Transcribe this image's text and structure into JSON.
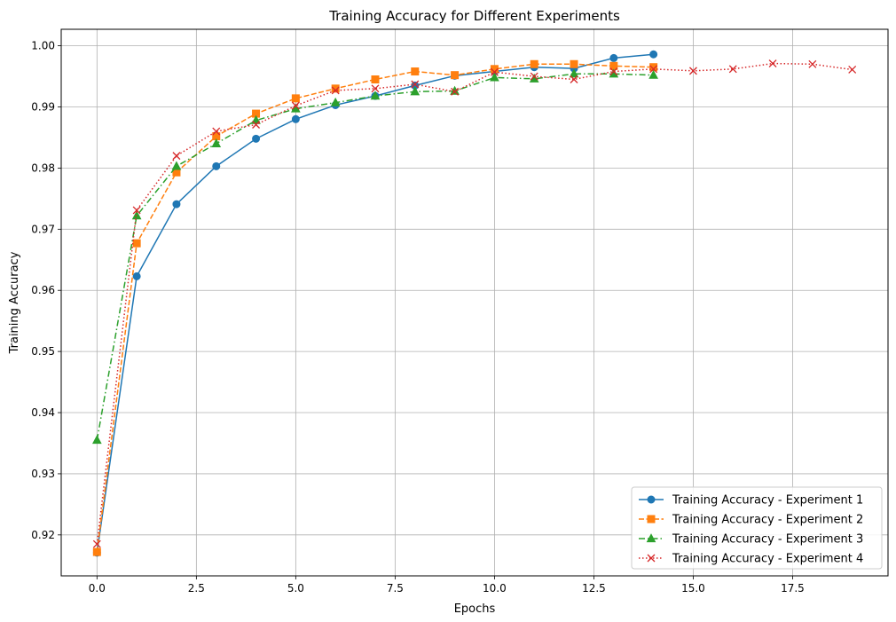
{
  "chart_data": {
    "type": "line",
    "title": "Training Accuracy for Different Experiments",
    "xlabel": "Epochs",
    "ylabel": "Training Accuracy",
    "xlim": [
      -0.9,
      19.9
    ],
    "ylim": [
      0.9133,
      1.0027
    ],
    "x_ticks": [
      0.0,
      2.5,
      5.0,
      7.5,
      10.0,
      12.5,
      15.0,
      17.5
    ],
    "x_tick_labels": [
      "0.0",
      "2.5",
      "5.0",
      "7.5",
      "10.0",
      "12.5",
      "15.0",
      "17.5"
    ],
    "y_ticks": [
      0.92,
      0.93,
      0.94,
      0.95,
      0.96,
      0.97,
      0.98,
      0.99,
      1.0
    ],
    "y_tick_labels": [
      "0.92",
      "0.93",
      "0.94",
      "0.95",
      "0.96",
      "0.97",
      "0.98",
      "0.99",
      "1.00"
    ],
    "grid": true,
    "legend_position": "bottom-right",
    "series": [
      {
        "name": "Training Accuracy - Experiment 1",
        "color": "#1f77b4",
        "line_style": "solid",
        "marker": "circle",
        "x": [
          0,
          1,
          2,
          3,
          4,
          5,
          6,
          7,
          8,
          9,
          10,
          11,
          12,
          13,
          14
        ],
        "values": [
          0.9171,
          0.9623,
          0.9741,
          0.9803,
          0.9848,
          0.988,
          0.9903,
          0.9918,
          0.9935,
          0.9951,
          0.9958,
          0.9965,
          0.9963,
          0.998,
          0.9986
        ]
      },
      {
        "name": "Training Accuracy - Experiment 2",
        "color": "#ff7f0e",
        "line_style": "dashed",
        "marker": "square",
        "x": [
          0,
          1,
          2,
          3,
          4,
          5,
          6,
          7,
          8,
          9,
          10,
          11,
          12,
          13,
          14
        ],
        "values": [
          0.9172,
          0.9677,
          0.9793,
          0.9852,
          0.9889,
          0.9914,
          0.993,
          0.9945,
          0.9958,
          0.9952,
          0.9962,
          0.997,
          0.997,
          0.9967,
          0.9965
        ]
      },
      {
        "name": "Training Accuracy - Experiment 3",
        "color": "#2ca02c",
        "line_style": "dashdot",
        "marker": "triangle",
        "x": [
          0,
          1,
          2,
          3,
          4,
          5,
          6,
          7,
          8,
          9,
          10,
          11,
          12,
          13,
          14
        ],
        "values": [
          0.9355,
          0.9722,
          0.9803,
          0.984,
          0.9878,
          0.9897,
          0.9907,
          0.9918,
          0.9925,
          0.9926,
          0.9948,
          0.9946,
          0.9954,
          0.9954,
          0.9952
        ]
      },
      {
        "name": "Training Accuracy - Experiment 4",
        "color": "#d62728",
        "line_style": "dotted",
        "marker": "x",
        "x": [
          0,
          1,
          2,
          3,
          4,
          5,
          6,
          7,
          8,
          9,
          10,
          11,
          12,
          13,
          14,
          15,
          16,
          17,
          18,
          19
        ],
        "values": [
          0.9185,
          0.9731,
          0.982,
          0.986,
          0.9871,
          0.9902,
          0.9927,
          0.993,
          0.9937,
          0.9925,
          0.9957,
          0.995,
          0.9945,
          0.9958,
          0.9962,
          0.9959,
          0.9962,
          0.9971,
          0.997,
          0.9961
        ]
      }
    ]
  }
}
